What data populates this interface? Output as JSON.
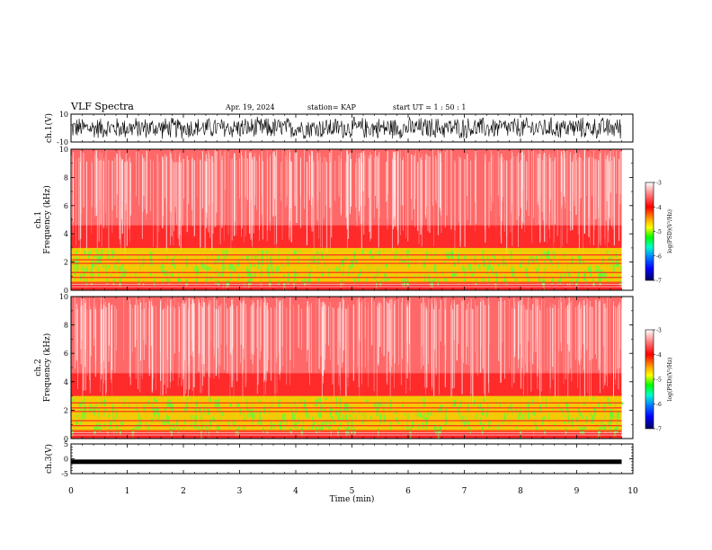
{
  "header": {
    "title": "VLF Spectra",
    "date": "Apr. 19, 2024",
    "station": "station= KAP",
    "start": "start  UT  =   1 : 50 : 1"
  },
  "chart_data": [
    {
      "type": "line",
      "panel": "ch1-waveform",
      "ylabel": "ch.1(V)",
      "ylim": [
        -10,
        10
      ],
      "yticks": [
        "10",
        "-10"
      ],
      "xlim": [
        0,
        10
      ],
      "description_level": "dense noise between about -9 and 9 V over 0–9.8 min"
    },
    {
      "type": "heatmap",
      "panel": "ch1-spectrogram",
      "ylabel": "ch.1\nFrequency  (kHz)",
      "ylim": [
        0,
        10
      ],
      "yticks": [
        "0",
        "2",
        "4",
        "6",
        "8",
        "10"
      ],
      "xlim": [
        0,
        10
      ],
      "colorbar": {
        "label": "log(PSD)(V²/Hz)",
        "range": [
          -7,
          -3
        ],
        "ticks": [
          "-3",
          "-4",
          "-5",
          "-6",
          "-7"
        ]
      }
    },
    {
      "type": "heatmap",
      "panel": "ch2-spectrogram",
      "ylabel": "ch.2\nFrequency  (kHz)",
      "ylim": [
        0,
        10
      ],
      "yticks": [
        "0",
        "2",
        "4",
        "6",
        "8",
        "10"
      ],
      "xlim": [
        0,
        10
      ],
      "colorbar": {
        "label": "log(PSD)(V²/Hz)",
        "range": [
          -7,
          -3
        ],
        "ticks": [
          "-3",
          "-4",
          "-5",
          "-6",
          "-7"
        ]
      }
    },
    {
      "type": "line",
      "panel": "ch3-waveform",
      "ylabel": "ch.3(V)",
      "ylim": [
        -5,
        5
      ],
      "yticks": [
        "5",
        "0",
        "-5"
      ],
      "xlim": [
        0,
        10
      ],
      "level": -1
    }
  ],
  "x_axis": {
    "label": "Time  (min)",
    "ticks": [
      "0",
      "1",
      "2",
      "3",
      "4",
      "5",
      "6",
      "7",
      "8",
      "9",
      "10"
    ]
  },
  "colors": {
    "spectrum_bg": "#ff2a2a",
    "spectrum_light": "#ff9a9a",
    "band_yellow": "#f2e600",
    "band_green": "#5aff3a",
    "line": "#000000"
  }
}
